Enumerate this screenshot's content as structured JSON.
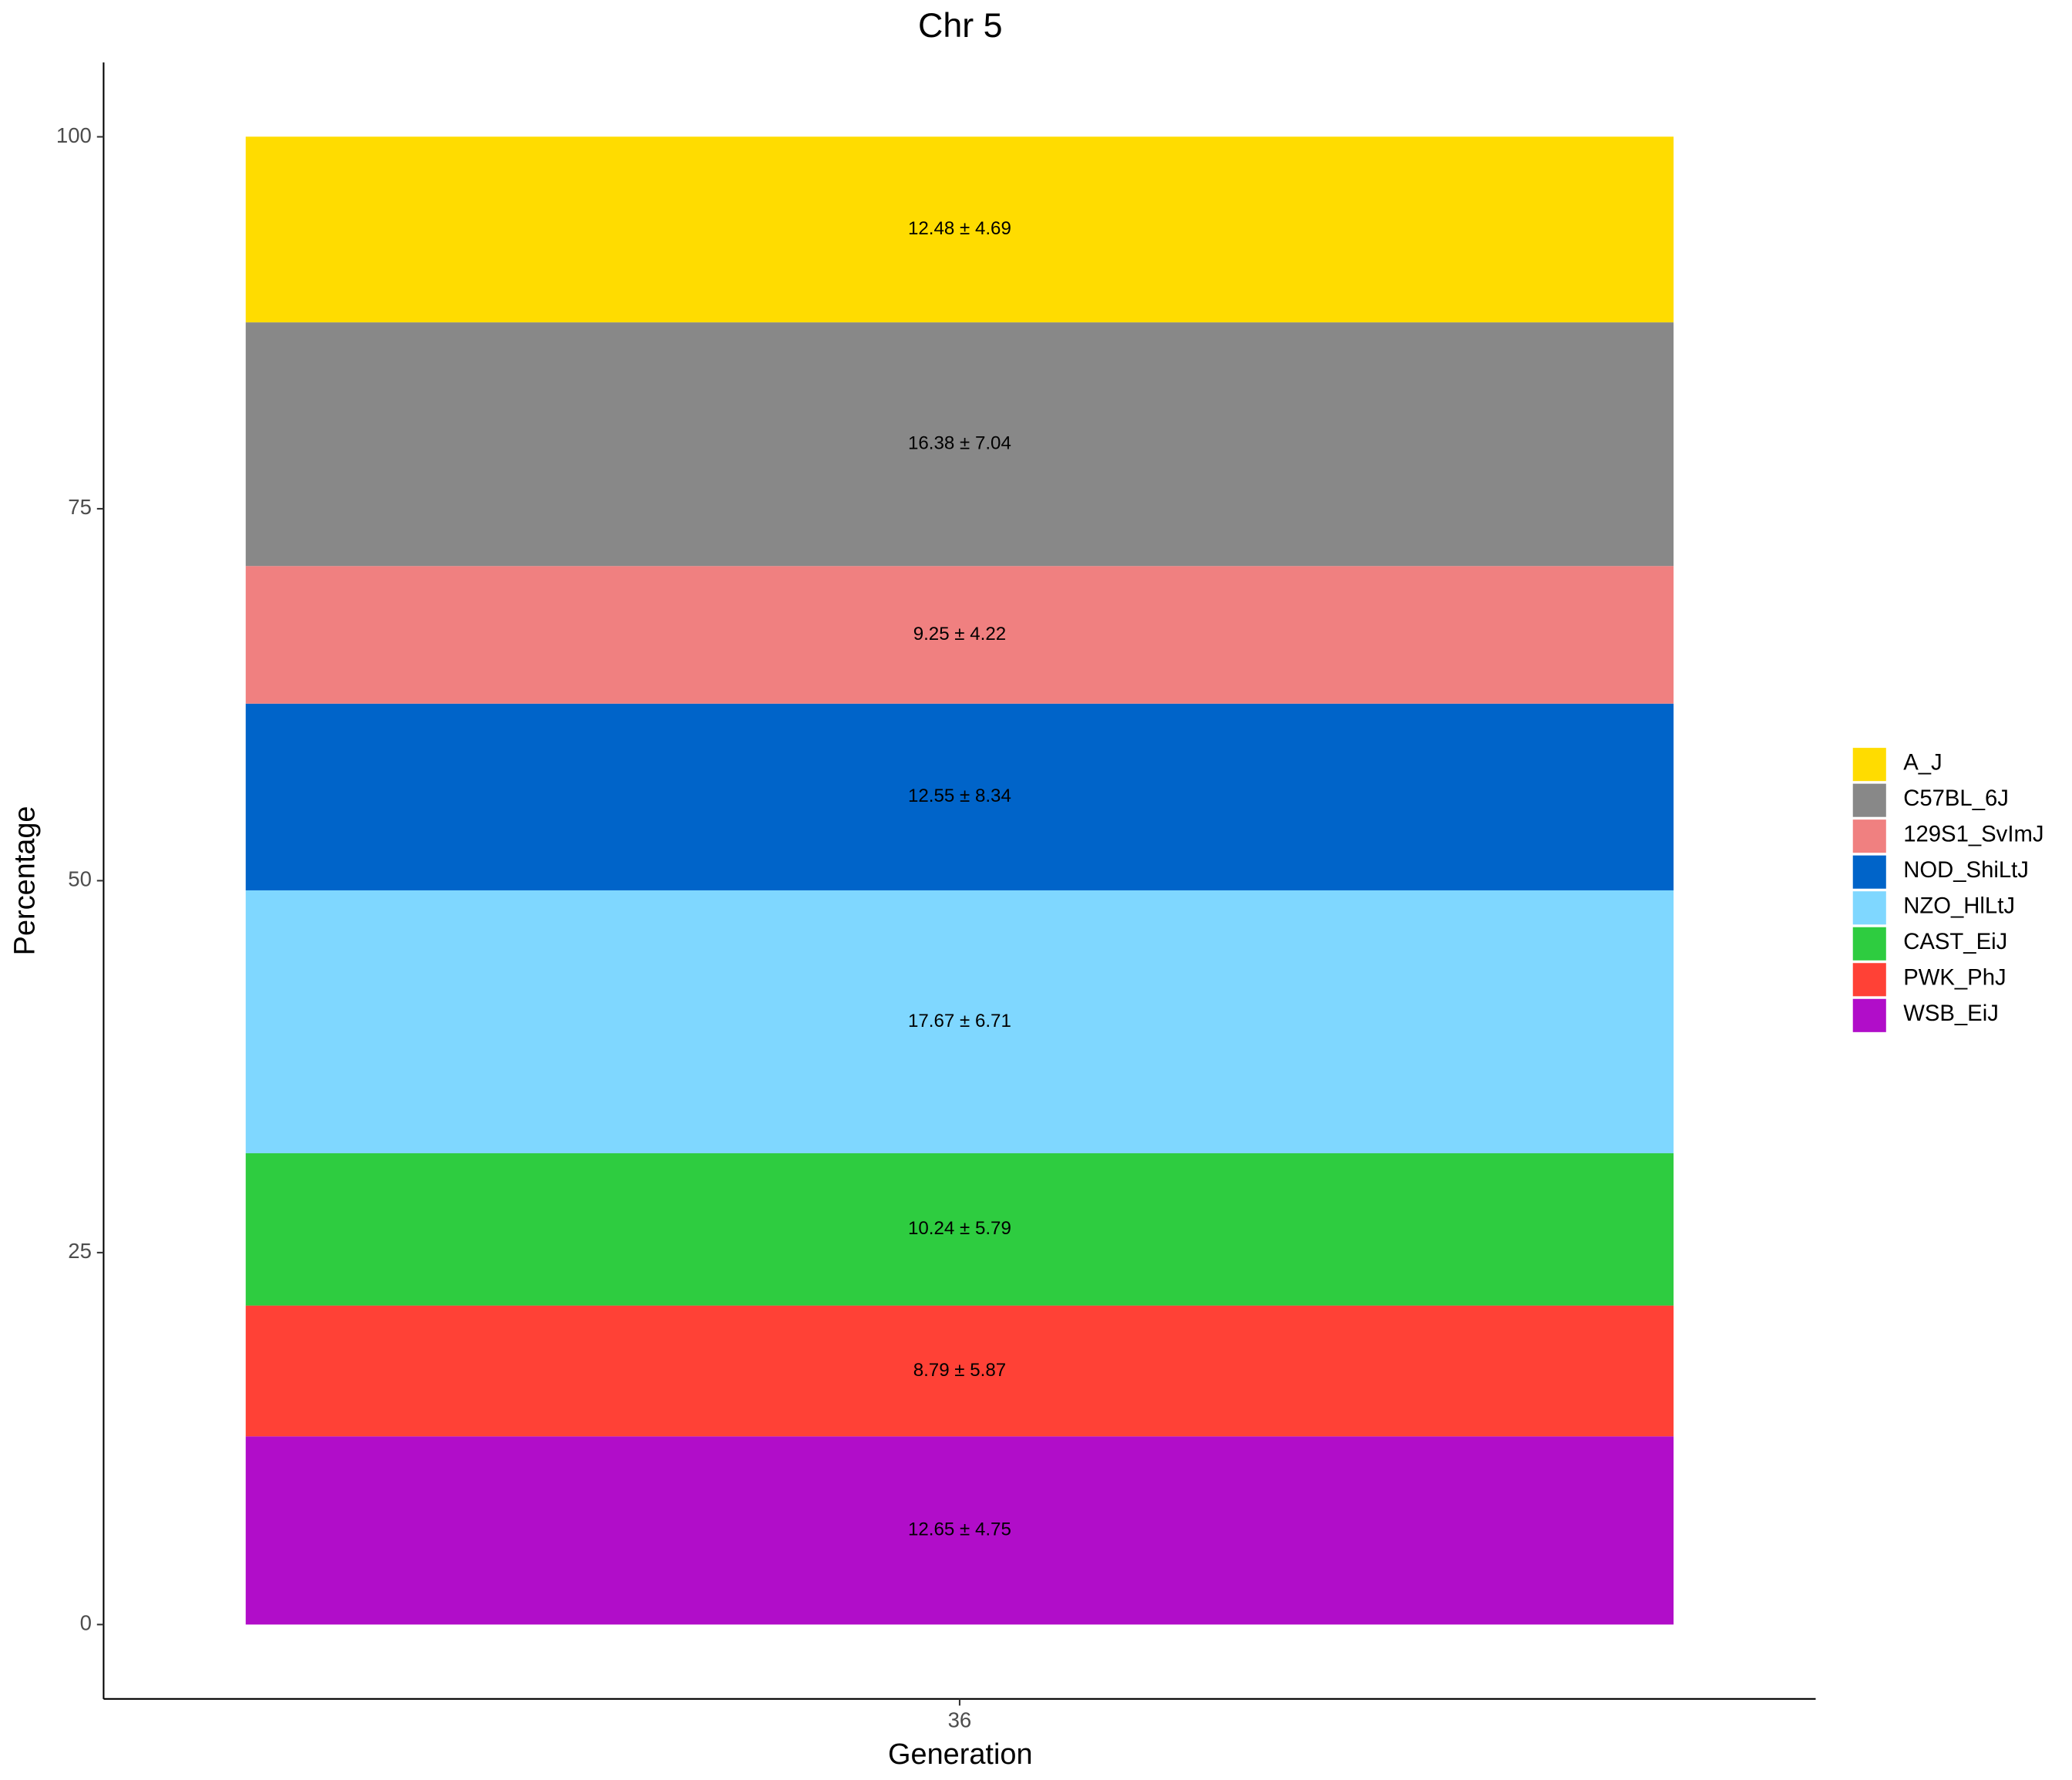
{
  "chart_data": {
    "type": "bar",
    "stacked": true,
    "title": "Chr 5",
    "x_label": "Generation",
    "y_label": "Percentage",
    "categories": [
      "36"
    ],
    "series": [
      {
        "name": "A_J",
        "color": "#FFDC00",
        "values": [
          12.48
        ],
        "value_labels": [
          "12.48 ± 4.69"
        ]
      },
      {
        "name": "C57BL_6J",
        "color": "#888888",
        "values": [
          16.38
        ],
        "value_labels": [
          "16.38 ± 7.04"
        ]
      },
      {
        "name": "129S1_SvImJ",
        "color": "#F08080",
        "values": [
          9.25
        ],
        "value_labels": [
          "9.25 ± 4.22"
        ]
      },
      {
        "name": "NOD_ShiLtJ",
        "color": "#0064C9",
        "values": [
          12.55
        ],
        "value_labels": [
          "12.55 ± 8.34"
        ]
      },
      {
        "name": "NZO_HlLtJ",
        "color": "#7FD7FF",
        "values": [
          17.67
        ],
        "value_labels": [
          "17.67 ± 6.71"
        ]
      },
      {
        "name": "CAST_EiJ",
        "color": "#2ECC40",
        "values": [
          10.24
        ],
        "value_labels": [
          "10.24 ± 5.79"
        ]
      },
      {
        "name": "PWK_PhJ",
        "color": "#FF4136",
        "values": [
          8.79
        ],
        "value_labels": [
          "8.79 ± 5.87"
        ]
      },
      {
        "name": "WSB_EiJ",
        "color": "#B10DC9",
        "values": [
          12.65
        ],
        "value_labels": [
          "12.65 ± 4.75"
        ]
      }
    ],
    "ylim": [
      -5,
      105
    ],
    "yticks": [
      0,
      25,
      50,
      75,
      100
    ],
    "legend": "right"
  }
}
